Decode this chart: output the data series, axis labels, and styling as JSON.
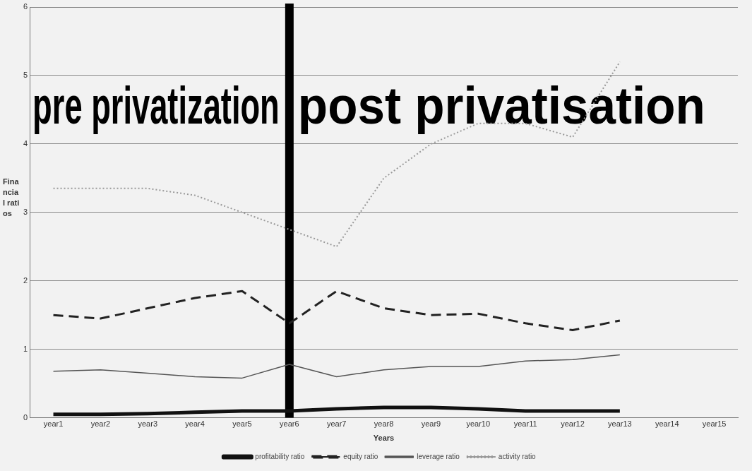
{
  "chart_data": {
    "type": "line",
    "xlabel": "Years",
    "ylabel": "Financial ratios",
    "categories": [
      "year1",
      "year2",
      "year3",
      "year4",
      "year5",
      "year6",
      "year7",
      "year8",
      "year9",
      "year10",
      "year11",
      "year12",
      "year13",
      "year14",
      "year15"
    ],
    "ylim": [
      0,
      6
    ],
    "yticks": [
      0,
      1,
      2,
      3,
      4,
      5,
      6
    ],
    "grid": "y",
    "legend": "bottom",
    "marker": "none",
    "series": [
      {
        "name": "profitability ratio",
        "color": "#111111",
        "line_style": "solid",
        "values": [
          0.05,
          0.05,
          0.06,
          0.08,
          0.1,
          0.1,
          0.13,
          0.15,
          0.15,
          0.13,
          0.1,
          0.1,
          0.1,
          null,
          null
        ]
      },
      {
        "name": "equity ratio",
        "color": "#222222",
        "line_style": "dashed",
        "values": [
          1.5,
          1.45,
          1.6,
          1.75,
          1.85,
          1.38,
          1.85,
          1.6,
          1.5,
          1.52,
          1.38,
          1.28,
          1.42,
          null,
          null
        ]
      },
      {
        "name": "leverage ratio",
        "color": "#555555",
        "line_style": "solid",
        "values": [
          0.68,
          0.7,
          0.65,
          0.6,
          0.58,
          0.78,
          0.6,
          0.7,
          0.75,
          0.75,
          0.83,
          0.85,
          0.92,
          null,
          null
        ]
      },
      {
        "name": "activity ratio",
        "color": "#999999",
        "line_style": "dotted",
        "values": [
          3.35,
          3.35,
          3.35,
          3.25,
          3.0,
          2.75,
          2.5,
          3.5,
          4.0,
          4.3,
          4.3,
          4.1,
          5.2,
          null,
          null
        ]
      }
    ],
    "ref_lines": [
      {
        "axis": "x",
        "value": "year6",
        "color": "#000000"
      }
    ],
    "annotations": [
      "pre privatization",
      "post privatisation"
    ]
  }
}
